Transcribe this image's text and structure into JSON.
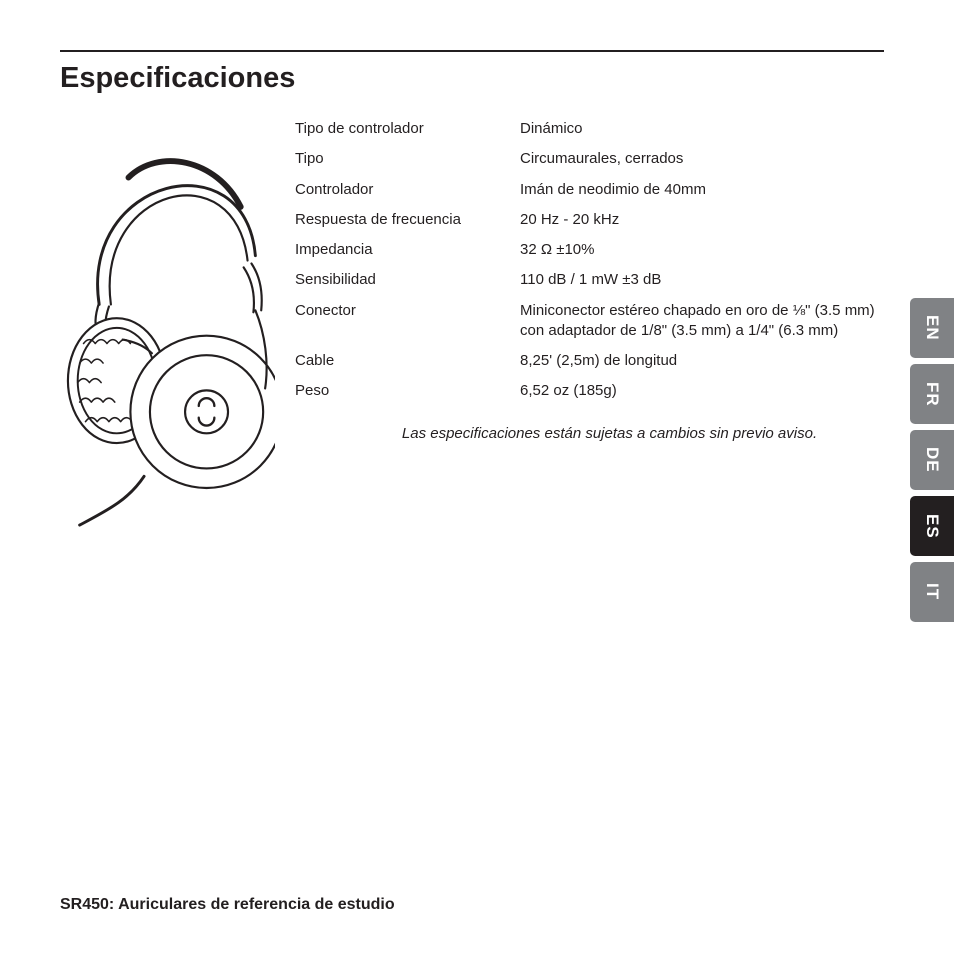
{
  "title": "Especificaciones",
  "specs": [
    {
      "label": "Tipo de controlador",
      "value": "Dinámico"
    },
    {
      "label": "Tipo",
      "value": "Circumaurales, cerrados"
    },
    {
      "label": "Controlador",
      "value": "Imán de neodimio de 40mm"
    },
    {
      "label": "Respuesta de frecuencia",
      "value": "20 Hz - 20 kHz"
    },
    {
      "label": "Impedancia",
      "value": "32 Ω ±10%"
    },
    {
      "label": "Sensibilidad",
      "value": "110 dB / 1 mW ±3 dB"
    },
    {
      "label": "Conector",
      "value": "Miniconector estéreo chapado en oro de ⅛\" (3.5 mm) con adaptador de 1/8\" (3.5 mm) a 1/4\" (6.3 mm)"
    },
    {
      "label": "Cable",
      "value": "8,25' (2,5m) de longitud"
    },
    {
      "label": "Peso",
      "value": "6,52 oz (185g)"
    }
  ],
  "note": "Las especificaciones están sujetas a cambios sin previo aviso.",
  "footer": "SR450: Auriculares de referencia de estudio",
  "lang_tabs": [
    {
      "code": "EN",
      "active": false
    },
    {
      "code": "FR",
      "active": false
    },
    {
      "code": "DE",
      "active": false
    },
    {
      "code": "ES",
      "active": true
    },
    {
      "code": "IT",
      "active": false
    }
  ],
  "colors": {
    "text": "#231f20",
    "tab_inactive_bg": "#808285",
    "tab_active_bg": "#231f20",
    "tab_fg": "#ffffff",
    "page_bg": "#ffffff"
  },
  "illustration": {
    "type": "line-drawing",
    "subject": "over-ear-headphones",
    "stroke": "#231f20",
    "fill": "#ffffff"
  }
}
